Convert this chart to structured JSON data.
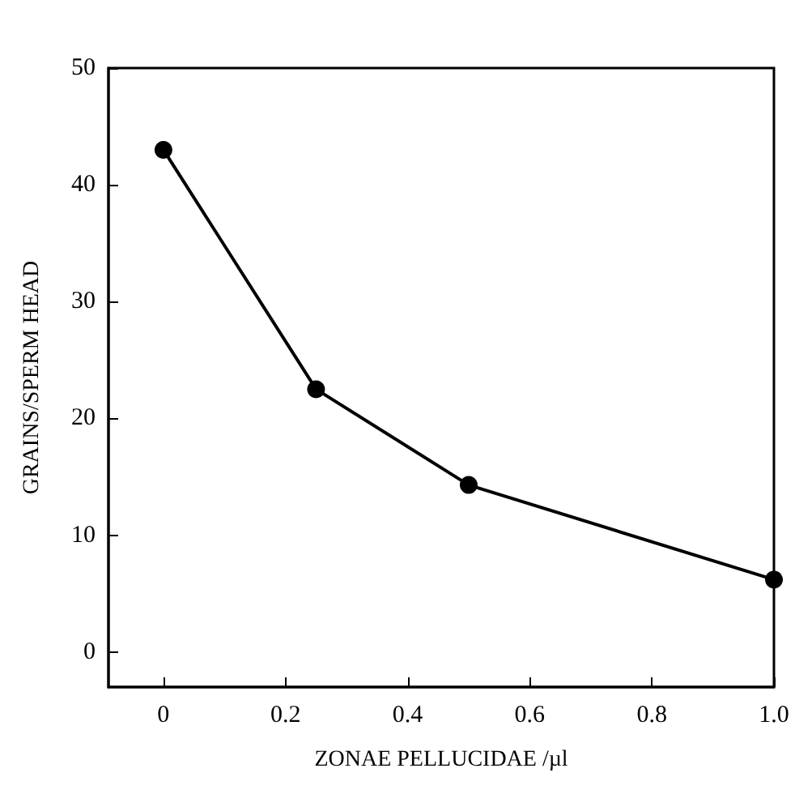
{
  "chart_data": {
    "type": "line",
    "xlabel": "ZONAE PELLUCIDAE /µl",
    "ylabel": "GRAINS/SPERM HEAD",
    "x": [
      0,
      0.25,
      0.5,
      1.0
    ],
    "series": [
      {
        "color": "#000000",
        "values": [
          43,
          22.5,
          14.3,
          6.2
        ]
      }
    ],
    "xlim": [
      -0.09,
      1.0
    ],
    "xticks": [
      0,
      0.2,
      0.4,
      0.6,
      0.8,
      {
        "value": 1,
        "label": "1.0"
      }
    ],
    "ylim": [
      -3,
      50
    ],
    "yticks": [
      0,
      10,
      20,
      30,
      40,
      50
    ],
    "grid": false,
    "marker": "circle",
    "line_style": "solid"
  }
}
